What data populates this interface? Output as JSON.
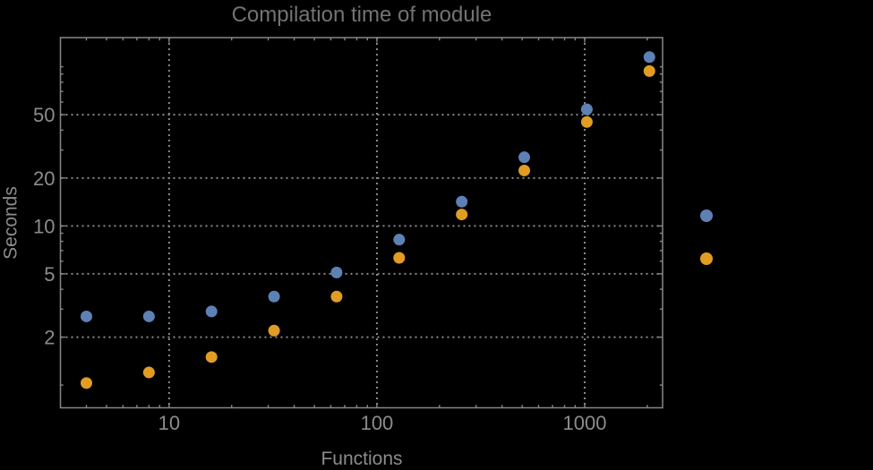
{
  "colors": {
    "background": "#000000",
    "frame": "#878787",
    "gridline": "#8a8a8a",
    "title": "#737373",
    "tick_label": "#8c8c8c",
    "axis_label": "#8c8c8c",
    "series1": "#5e81b5",
    "series2": "#e19c24"
  },
  "chart_data": {
    "type": "scatter",
    "title": "Compilation time of module",
    "xlabel": "Functions",
    "ylabel": "Seconds",
    "x_scale": "log",
    "y_scale": "log",
    "grid": true,
    "legend_position": "right-center",
    "x_range": [
      3,
      2370
    ],
    "y_range": [
      0.72,
      152.5
    ],
    "x_major_ticks": [
      10,
      100,
      1000
    ],
    "x_tick_labels": [
      "10",
      "100",
      "1000"
    ],
    "x_minor_ticks": [
      4,
      5,
      6,
      7,
      8,
      9,
      20,
      30,
      40,
      50,
      60,
      70,
      80,
      90,
      200,
      300,
      400,
      500,
      600,
      700,
      800,
      900,
      2000
    ],
    "y_major_ticks": [
      2,
      5,
      10,
      20,
      50
    ],
    "y_tick_labels": [
      "2",
      "5",
      "10",
      "20",
      "50"
    ],
    "y_minor_ticks": [
      1,
      3,
      4,
      6,
      7,
      8,
      9,
      30,
      40,
      60,
      70,
      80,
      90,
      100
    ],
    "x": [
      4,
      8,
      16,
      32,
      64,
      128,
      256,
      512,
      1024,
      2048
    ],
    "series": [
      {
        "name": "series-1",
        "color": "#5e81b5",
        "values": [
          2.7,
          2.7,
          2.9,
          3.6,
          5.1,
          8.2,
          14.2,
          27,
          54,
          115
        ]
      },
      {
        "name": "series-2",
        "color": "#e19c24",
        "values": [
          1.03,
          1.2,
          1.5,
          2.2,
          3.6,
          6.3,
          11.8,
          22.3,
          45,
          94
        ]
      }
    ],
    "legend": {
      "labels_visible": false,
      "markers": [
        {
          "series": "series-1",
          "color": "#5e81b5"
        },
        {
          "series": "series-2",
          "color": "#e19c24"
        }
      ]
    }
  }
}
